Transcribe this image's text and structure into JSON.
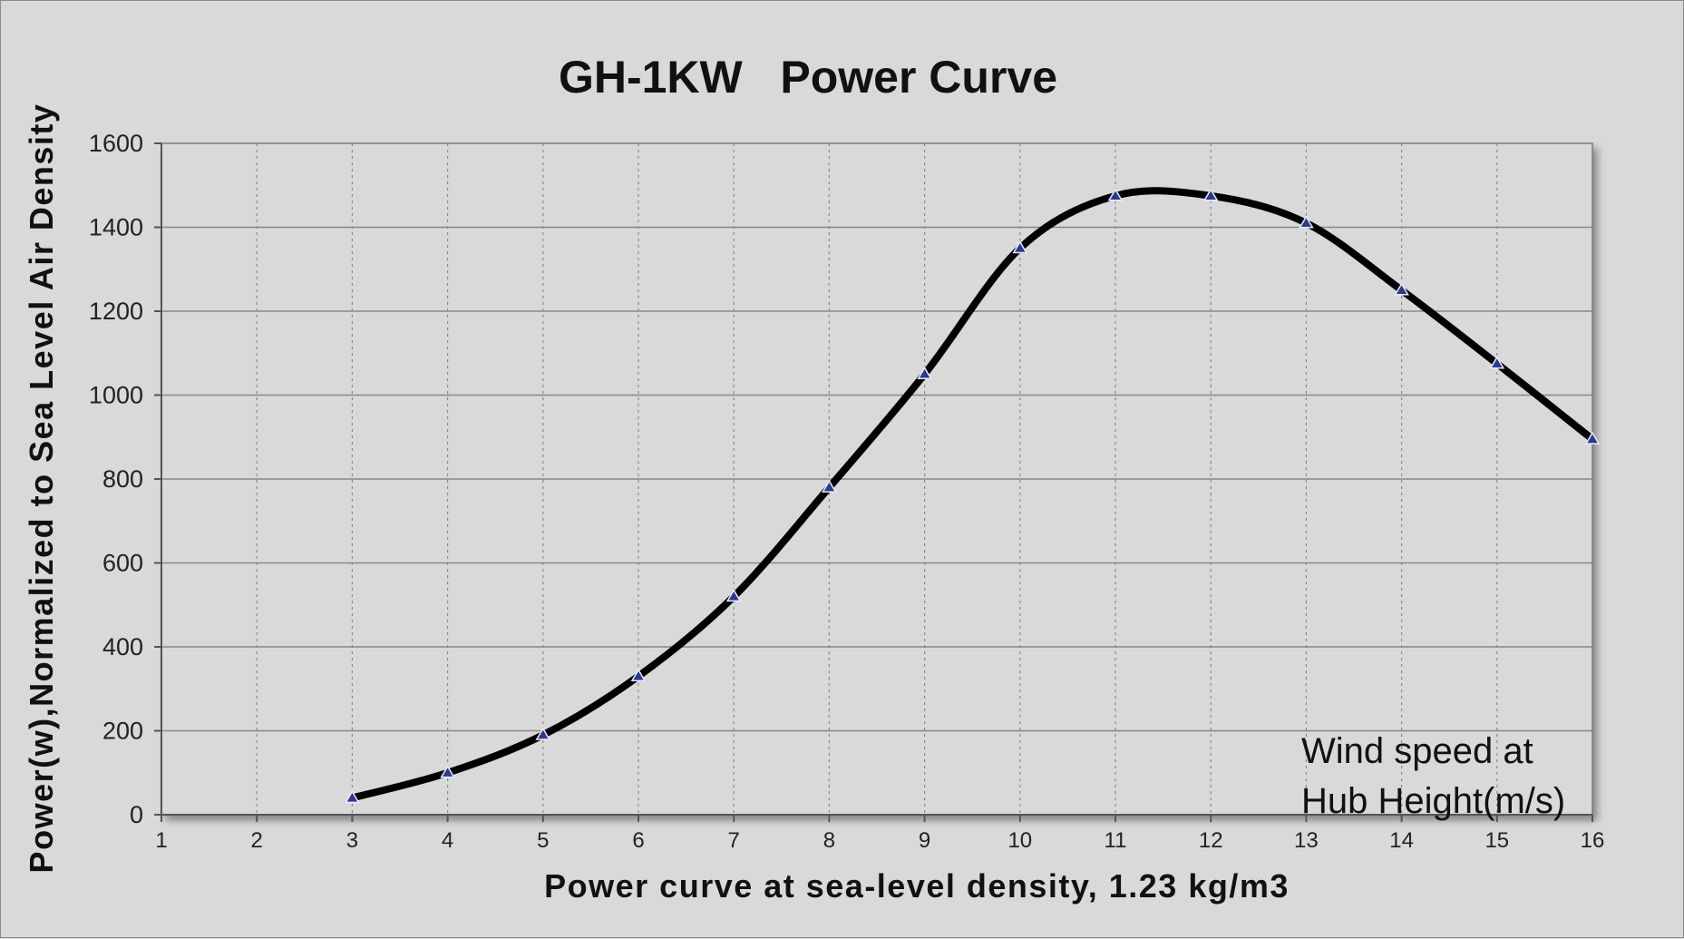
{
  "chart_data": {
    "type": "line",
    "title": "GH-1KW   Power Curve",
    "xlabel": "Power curve at sea-level density, 1.23 kg/m3",
    "ylabel": "Power(w),Normalized to Sea Level Air Density",
    "annotation": [
      "Wind speed at",
      "Hub Height(m/s)"
    ],
    "xlim": [
      1,
      16
    ],
    "ylim": [
      0,
      1600
    ],
    "x_ticks": [
      "1",
      "2",
      "3",
      "4",
      "5",
      "6",
      "7",
      "8",
      "9",
      "10",
      "11",
      "12",
      "13",
      "14",
      "15",
      "16"
    ],
    "y_ticks": [
      "0",
      "200",
      "400",
      "600",
      "800",
      "1000",
      "1200",
      "1400",
      "1600"
    ],
    "grid": {
      "x": true,
      "y": true
    },
    "series": [
      {
        "x": [
          3,
          4,
          5,
          6,
          7,
          8,
          9,
          10,
          11,
          12,
          13,
          14,
          15,
          16
        ],
        "values": [
          40,
          100,
          190,
          330,
          520,
          780,
          1050,
          1350,
          1475,
          1475,
          1410,
          1250,
          1075,
          895
        ],
        "color": "#000000",
        "marker": "triangle",
        "marker_color": "#2c3a8c"
      }
    ]
  }
}
